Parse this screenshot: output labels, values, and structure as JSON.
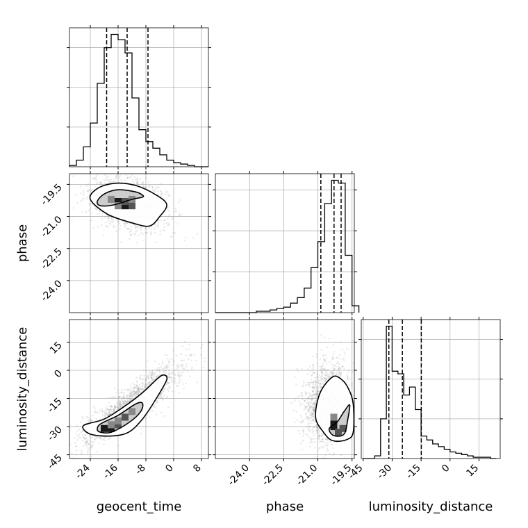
{
  "chart_data": {
    "type": "corner",
    "parameters": [
      "geocent_time",
      "phase",
      "luminosity_distance"
    ],
    "grid": true,
    "colors": {
      "line": "#000000",
      "grid": "#b0b0b0",
      "scatter": "#808080",
      "background": "#ffffff"
    },
    "diagonal": [
      {
        "parameter": "geocent_time",
        "bins": [
          -30,
          -28,
          -26,
          -24,
          -22,
          -20,
          -18,
          -16,
          -14,
          -12,
          -10,
          -8,
          -6,
          -4,
          -2,
          0,
          2,
          4,
          6,
          8,
          10
        ],
        "counts": [
          1,
          5,
          15,
          33,
          63,
          90,
          100,
          96,
          86,
          52,
          28,
          19,
          14,
          9,
          5,
          3,
          2,
          1,
          0,
          0
        ],
        "quantiles": [
          -19.3,
          -13.4,
          -7.4
        ],
        "xlim": [
          -30,
          10
        ],
        "yticks": [
          30,
          60,
          90
        ]
      },
      {
        "parameter": "phase",
        "bins": [
          -25.5,
          -25.2,
          -24.9,
          -24.6,
          -24.3,
          -24.0,
          -23.7,
          -23.4,
          -23.1,
          -22.8,
          -22.5,
          -22.2,
          -21.9,
          -21.6,
          -21.3,
          -21.0,
          -20.7,
          -20.4,
          -20.1,
          -19.8,
          -19.5,
          -19.2
        ],
        "counts": [
          0,
          0,
          0,
          0,
          0,
          0,
          1,
          1,
          2,
          3,
          4,
          7,
          11,
          18,
          33,
          52,
          80,
          97,
          95,
          42,
          5
        ],
        "quantiles": [
          -20.87,
          -20.29,
          -19.98
        ],
        "xlim": [
          -25.5,
          -19.4
        ],
        "yticks": [
          30,
          60,
          90
        ]
      },
      {
        "parameter": "luminosity_distance",
        "bins": [
          -45,
          -42,
          -39,
          -36,
          -33,
          -30,
          -27,
          -24,
          -21,
          -18,
          -15,
          -12,
          -9,
          -6,
          -3,
          0,
          3,
          6,
          9,
          12,
          15,
          18,
          21,
          24
        ],
        "counts": [
          0,
          0,
          2,
          30,
          100,
          66,
          64,
          48,
          54,
          37,
          17,
          14,
          11,
          9,
          7,
          5,
          4,
          3,
          2,
          1,
          1,
          1,
          0
        ],
        "quantiles": [
          -31.7,
          -24.7,
          -14.9
        ],
        "xlim": [
          -46,
          26
        ],
        "yticks": [
          30,
          60,
          90
        ]
      }
    ],
    "panels_2d": [
      {
        "x": "geocent_time",
        "y": "phase",
        "xlim": [
          -30,
          10
        ],
        "ylim": [
          -25.5,
          -19.0
        ],
        "mean": [
          -13,
          -20.4
        ],
        "sd": [
          5.5,
          0.6
        ],
        "corr": -0.3,
        "contours": [
          [
            [
              -22,
              -20.3
            ],
            [
              -20,
              -19.95
            ],
            [
              -16,
              -19.75
            ],
            [
              -11,
              -19.85
            ],
            [
              -9,
              -20.0
            ],
            [
              -9,
              -20.1
            ],
            [
              -12,
              -20.2
            ],
            [
              -17,
              -20.45
            ],
            [
              -21,
              -20.5
            ]
          ],
          [
            [
              -24,
              -20.2
            ],
            [
              -22,
              -19.7
            ],
            [
              -17,
              -19.45
            ],
            [
              -11,
              -19.55
            ],
            [
              -5,
              -20.0
            ],
            [
              -2,
              -20.45
            ],
            [
              -4,
              -21.0
            ],
            [
              -7,
              -21.45
            ],
            [
              -12,
              -21.3
            ],
            [
              -19,
              -20.9
            ]
          ]
        ],
        "heat": [
          [
            -16,
            -20.3
          ],
          [
            -14,
            -20.5
          ],
          [
            -12,
            -20.5
          ],
          [
            -14,
            -20.3
          ],
          [
            -18,
            -20.2
          ],
          [
            -12,
            -20.2
          ],
          [
            -16,
            -20.5
          ]
        ]
      },
      {
        "x": "geocent_time",
        "y": "luminosity_distance",
        "xlim": [
          -30,
          10
        ],
        "ylim": [
          -47,
          27
        ],
        "mean": [
          -12,
          -18
        ],
        "sd": [
          7.5,
          11.0
        ],
        "corr": 0.88,
        "contours": [
          [
            [
              -22,
              -31.5
            ],
            [
              -21,
              -28.5
            ],
            [
              -16,
              -24.0
            ],
            [
              -11,
              -18.0
            ],
            [
              -9,
              -17.5
            ],
            [
              -9.5,
              -22.0
            ],
            [
              -13,
              -28.0
            ],
            [
              -18,
              -33.0
            ],
            [
              -21,
              -33.0
            ]
          ],
          [
            [
              -26,
              -29.5
            ],
            [
              -20,
              -26.0
            ],
            [
              -14,
              -19.0
            ],
            [
              -9,
              -12.0
            ],
            [
              -5,
              -5.0
            ],
            [
              -3,
              -2.5
            ],
            [
              -2,
              -5.0
            ],
            [
              -5,
              -15.0
            ],
            [
              -9,
              -26.0
            ],
            [
              -13,
              -33.0
            ],
            [
              -18,
              -35.0
            ],
            [
              -24,
              -34.0
            ]
          ]
        ],
        "heat": [
          [
            -20,
            -31
          ],
          [
            -18,
            -31
          ],
          [
            -16,
            -29
          ],
          [
            -14,
            -25
          ],
          [
            -12,
            -22
          ],
          [
            -16,
            -27
          ],
          [
            -18,
            -29
          ]
        ]
      },
      {
        "x": "phase",
        "y": "luminosity_distance",
        "xlim": [
          -25.5,
          -19.4
        ],
        "ylim": [
          -47,
          27
        ],
        "mean": [
          -20.6,
          -18
        ],
        "sd": [
          0.5,
          11.0
        ],
        "corr": 0.15,
        "contours": [
          [
            [
              -20.35,
              -34.5
            ],
            [
              -20.5,
              -31.0
            ],
            [
              -20.15,
              -27.5
            ],
            [
              -19.85,
              -22.0
            ],
            [
              -19.6,
              -18.5
            ],
            [
              -19.7,
              -27.0
            ],
            [
              -19.8,
              -33.0
            ],
            [
              -20.0,
              -35.0
            ]
          ],
          [
            [
              -21.1,
              -25.0
            ],
            [
              -20.9,
              -12.0
            ],
            [
              -20.35,
              -3.5
            ],
            [
              -19.95,
              -5.0
            ],
            [
              -19.65,
              -10.0
            ],
            [
              -19.45,
              -18.0
            ],
            [
              -19.45,
              -33.0
            ],
            [
              -19.75,
              -37.0
            ],
            [
              -20.35,
              -37.5
            ],
            [
              -20.75,
              -33.0
            ]
          ]
        ],
        "heat": [
          [
            -20.3,
            -27
          ],
          [
            -20.3,
            -30
          ],
          [
            -20.1,
            -33
          ],
          [
            -19.9,
            -31
          ],
          [
            -20.3,
            -25
          ]
        ]
      }
    ],
    "ticks": {
      "geocent_time": [
        "-24",
        "-16",
        "-8",
        "0",
        "8"
      ],
      "phase": [
        "-24.0",
        "-22.5",
        "-21.0",
        "-19.5"
      ],
      "luminosity_distance": [
        "-45",
        "-30",
        "-15",
        "0",
        "15"
      ]
    },
    "tick_values": {
      "geocent_time": [
        -24,
        -16,
        -8,
        0,
        8
      ],
      "phase": [
        -24.0,
        -22.5,
        -21.0,
        -19.5
      ],
      "luminosity_distance": [
        -45,
        -30,
        -15,
        0,
        15
      ]
    },
    "xlabels": [
      "geocent_time",
      "phase",
      "luminosity_distance"
    ],
    "ylabels": [
      "",
      "phase",
      "luminosity_distance"
    ]
  }
}
